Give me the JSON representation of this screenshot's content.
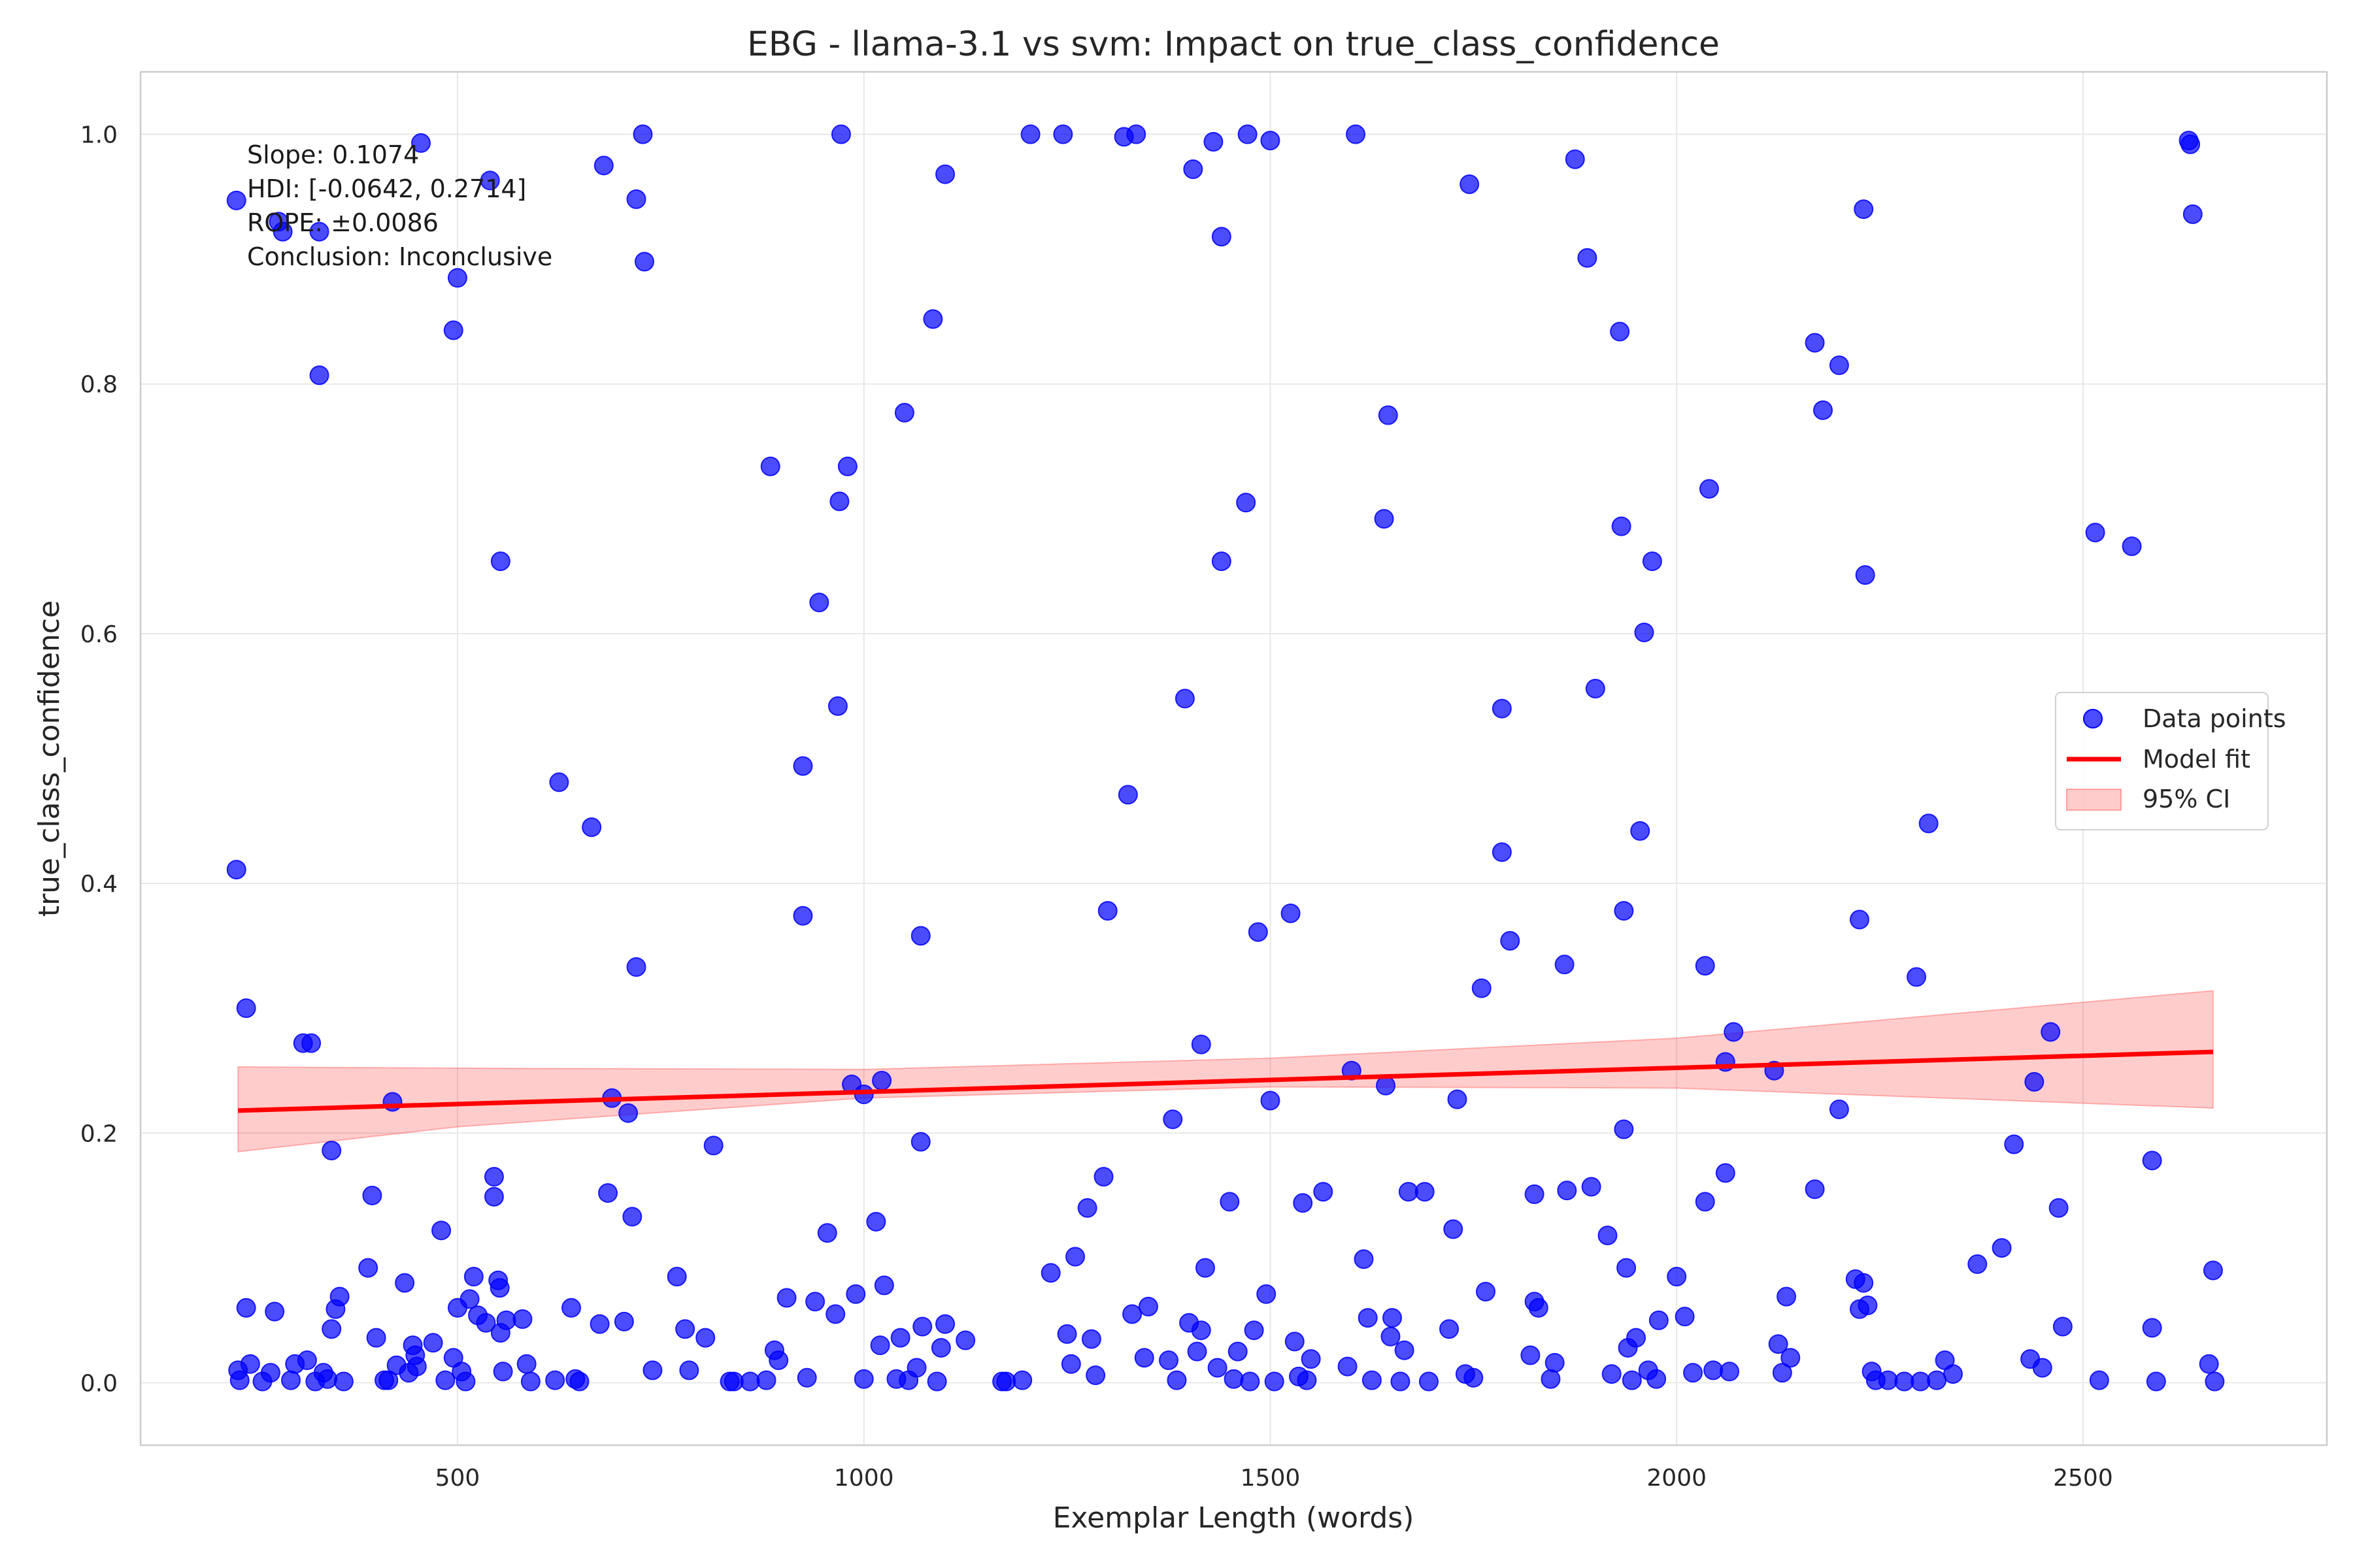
{
  "chart_data": {
    "type": "scatter",
    "title": "EBG - llama-3.1 vs svm: Impact on true_class_confidence",
    "xlabel": "Exemplar Length (words)",
    "ylabel": "true_class_confidence",
    "xlim": [
      110,
      2800
    ],
    "ylim": [
      -0.05,
      1.05
    ],
    "xticks": [
      500,
      1000,
      1500,
      2000,
      2500
    ],
    "yticks": [
      0.0,
      0.2,
      0.4,
      0.6,
      0.8,
      1.0
    ],
    "xtick_labels": [
      "500",
      "1000",
      "1500",
      "2000",
      "2500"
    ],
    "ytick_labels": [
      "0.0",
      "0.2",
      "0.4",
      "0.6",
      "0.8",
      "1.0"
    ],
    "grid": true,
    "legend_position": "center-right",
    "legend": [
      "Data points",
      "Model fit",
      "95% CI"
    ],
    "colors": {
      "points": "#0000ff",
      "fit": "#ff0000",
      "ci": "#ffb3b3"
    },
    "annotation": [
      "Slope: 0.1074",
      "HDI: [-0.0642, 0.2714]",
      "ROPE: ±0.0086",
      "Conclusion: Inconclusive"
    ],
    "model_fit": {
      "x": [
        230,
        2660
      ],
      "y": [
        0.218,
        0.265
      ]
    },
    "ci_band": {
      "x": [
        230,
        500,
        1000,
        1500,
        2000,
        2660
      ],
      "lower": [
        0.185,
        0.205,
        0.228,
        0.237,
        0.236,
        0.22
      ],
      "upper": [
        0.253,
        0.252,
        0.251,
        0.26,
        0.276,
        0.314
      ]
    },
    "points": [
      [
        228,
        0.947
      ],
      [
        228,
        0.411
      ],
      [
        240,
        0.3
      ],
      [
        230,
        0.01
      ],
      [
        232,
        0.002
      ],
      [
        245,
        0.015
      ],
      [
        240,
        0.06
      ],
      [
        260,
        0.001
      ],
      [
        270,
        0.008
      ],
      [
        275,
        0.057
      ],
      [
        280,
        0.93
      ],
      [
        285,
        0.922
      ],
      [
        295,
        0.002
      ],
      [
        300,
        0.015
      ],
      [
        310,
        0.272
      ],
      [
        315,
        0.018
      ],
      [
        320,
        0.272
      ],
      [
        325,
        0.001
      ],
      [
        330,
        0.807
      ],
      [
        330,
        0.922
      ],
      [
        335,
        0.008
      ],
      [
        340,
        0.003
      ],
      [
        345,
        0.043
      ],
      [
        345,
        0.186
      ],
      [
        350,
        0.059
      ],
      [
        355,
        0.069
      ],
      [
        360,
        0.001
      ],
      [
        390,
        0.092
      ],
      [
        395,
        0.15
      ],
      [
        400,
        0.036
      ],
      [
        410,
        0.002
      ],
      [
        415,
        0.002
      ],
      [
        420,
        0.225
      ],
      [
        425,
        0.014
      ],
      [
        435,
        0.08
      ],
      [
        440,
        0.008
      ],
      [
        445,
        0.03
      ],
      [
        448,
        0.022
      ],
      [
        450,
        0.013
      ],
      [
        455,
        0.993
      ],
      [
        470,
        0.032
      ],
      [
        480,
        0.122
      ],
      [
        485,
        0.002
      ],
      [
        495,
        0.843
      ],
      [
        495,
        0.02
      ],
      [
        500,
        0.885
      ],
      [
        500,
        0.06
      ],
      [
        505,
        0.009
      ],
      [
        510,
        0.001
      ],
      [
        515,
        0.067
      ],
      [
        520,
        0.085
      ],
      [
        525,
        0.054
      ],
      [
        535,
        0.048
      ],
      [
        540,
        0.963
      ],
      [
        545,
        0.165
      ],
      [
        545,
        0.149
      ],
      [
        550,
        0.082
      ],
      [
        552,
        0.076
      ],
      [
        553,
        0.04
      ],
      [
        553,
        0.658
      ],
      [
        556,
        0.009
      ],
      [
        560,
        0.05
      ],
      [
        580,
        0.051
      ],
      [
        585,
        0.015
      ],
      [
        590,
        0.001
      ],
      [
        620,
        0.002
      ],
      [
        625,
        0.481
      ],
      [
        640,
        0.06
      ],
      [
        645,
        0.003
      ],
      [
        650,
        0.001
      ],
      [
        665,
        0.445
      ],
      [
        675,
        0.047
      ],
      [
        680,
        0.975
      ],
      [
        685,
        0.152
      ],
      [
        690,
        0.228
      ],
      [
        705,
        0.049
      ],
      [
        710,
        0.216
      ],
      [
        715,
        0.133
      ],
      [
        720,
        0.333
      ],
      [
        720,
        0.948
      ],
      [
        728,
        1.0
      ],
      [
        730,
        0.898
      ],
      [
        740,
        0.01
      ],
      [
        770,
        0.085
      ],
      [
        780,
        0.043
      ],
      [
        785,
        0.01
      ],
      [
        805,
        0.036
      ],
      [
        815,
        0.19
      ],
      [
        835,
        0.001
      ],
      [
        840,
        0.001
      ],
      [
        860,
        0.001
      ],
      [
        880,
        0.002
      ],
      [
        885,
        0.734
      ],
      [
        890,
        0.026
      ],
      [
        895,
        0.018
      ],
      [
        905,
        0.068
      ],
      [
        925,
        0.494
      ],
      [
        925,
        0.374
      ],
      [
        930,
        0.004
      ],
      [
        940,
        0.065
      ],
      [
        945,
        0.625
      ],
      [
        955,
        0.12
      ],
      [
        965,
        0.055
      ],
      [
        968,
        0.542
      ],
      [
        970,
        0.706
      ],
      [
        972,
        1.0
      ],
      [
        980,
        0.734
      ],
      [
        985,
        0.239
      ],
      [
        990,
        0.071
      ],
      [
        1000,
        0.231
      ],
      [
        1000,
        0.003
      ],
      [
        1015,
        0.129
      ],
      [
        1020,
        0.03
      ],
      [
        1022,
        0.242
      ],
      [
        1025,
        0.078
      ],
      [
        1040,
        0.003
      ],
      [
        1045,
        0.036
      ],
      [
        1050,
        0.777
      ],
      [
        1055,
        0.002
      ],
      [
        1065,
        0.012
      ],
      [
        1070,
        0.358
      ],
      [
        1070,
        0.193
      ],
      [
        1072,
        0.045
      ],
      [
        1085,
        0.852
      ],
      [
        1090,
        0.001
      ],
      [
        1095,
        0.028
      ],
      [
        1100,
        0.968
      ],
      [
        1100,
        0.047
      ],
      [
        1125,
        0.034
      ],
      [
        1170,
        0.001
      ],
      [
        1175,
        0.001
      ],
      [
        1195,
        0.002
      ],
      [
        1205,
        1.0
      ],
      [
        1230,
        0.088
      ],
      [
        1245,
        1.0
      ],
      [
        1250,
        0.039
      ],
      [
        1255,
        0.015
      ],
      [
        1260,
        0.101
      ],
      [
        1275,
        0.14
      ],
      [
        1280,
        0.035
      ],
      [
        1285,
        0.006
      ],
      [
        1295,
        0.165
      ],
      [
        1300,
        0.378
      ],
      [
        1320,
        0.998
      ],
      [
        1325,
        0.471
      ],
      [
        1330,
        0.055
      ],
      [
        1335,
        1.0
      ],
      [
        1345,
        0.02
      ],
      [
        1350,
        0.061
      ],
      [
        1375,
        0.018
      ],
      [
        1380,
        0.211
      ],
      [
        1385,
        0.002
      ],
      [
        1395,
        0.548
      ],
      [
        1400,
        0.048
      ],
      [
        1405,
        0.972
      ],
      [
        1410,
        0.025
      ],
      [
        1415,
        0.271
      ],
      [
        1415,
        0.042
      ],
      [
        1420,
        0.092
      ],
      [
        1430,
        0.994
      ],
      [
        1435,
        0.012
      ],
      [
        1440,
        0.918
      ],
      [
        1440,
        0.658
      ],
      [
        1450,
        0.145
      ],
      [
        1455,
        0.003
      ],
      [
        1460,
        0.025
      ],
      [
        1470,
        0.705
      ],
      [
        1472,
        1.0
      ],
      [
        1475,
        0.001
      ],
      [
        1480,
        0.042
      ],
      [
        1485,
        0.361
      ],
      [
        1495,
        0.071
      ],
      [
        1500,
        0.226
      ],
      [
        1500,
        0.995
      ],
      [
        1505,
        0.001
      ],
      [
        1525,
        0.376
      ],
      [
        1530,
        0.033
      ],
      [
        1535,
        0.005
      ],
      [
        1540,
        0.144
      ],
      [
        1545,
        0.002
      ],
      [
        1550,
        0.019
      ],
      [
        1565,
        0.153
      ],
      [
        1595,
        0.013
      ],
      [
        1600,
        0.25
      ],
      [
        1605,
        1.0
      ],
      [
        1615,
        0.099
      ],
      [
        1620,
        0.052
      ],
      [
        1625,
        0.002
      ],
      [
        1640,
        0.692
      ],
      [
        1642,
        0.238
      ],
      [
        1645,
        0.775
      ],
      [
        1648,
        0.037
      ],
      [
        1650,
        0.052
      ],
      [
        1660,
        0.001
      ],
      [
        1665,
        0.026
      ],
      [
        1670,
        0.153
      ],
      [
        1690,
        0.153
      ],
      [
        1695,
        0.001
      ],
      [
        1720,
        0.043
      ],
      [
        1725,
        0.123
      ],
      [
        1730,
        0.227
      ],
      [
        1740,
        0.007
      ],
      [
        1745,
        0.96
      ],
      [
        1750,
        0.004
      ],
      [
        1760,
        0.316
      ],
      [
        1765,
        0.073
      ],
      [
        1785,
        0.54
      ],
      [
        1785,
        0.425
      ],
      [
        1795,
        0.354
      ],
      [
        1820,
        0.022
      ],
      [
        1825,
        0.151
      ],
      [
        1825,
        0.065
      ],
      [
        1830,
        0.06
      ],
      [
        1845,
        0.003
      ],
      [
        1850,
        0.016
      ],
      [
        1862,
        0.335
      ],
      [
        1865,
        0.154
      ],
      [
        1875,
        0.98
      ],
      [
        1890,
        0.901
      ],
      [
        1895,
        0.157
      ],
      [
        1900,
        0.556
      ],
      [
        1915,
        0.118
      ],
      [
        1920,
        0.007
      ],
      [
        1930,
        0.842
      ],
      [
        1932,
        0.686
      ],
      [
        1935,
        0.378
      ],
      [
        1935,
        0.203
      ],
      [
        1938,
        0.092
      ],
      [
        1940,
        0.028
      ],
      [
        1945,
        0.002
      ],
      [
        1950,
        0.036
      ],
      [
        1955,
        0.442
      ],
      [
        1960,
        0.601
      ],
      [
        1965,
        0.01
      ],
      [
        1970,
        0.658
      ],
      [
        1975,
        0.003
      ],
      [
        1978,
        0.05
      ],
      [
        2000,
        0.085
      ],
      [
        2010,
        0.053
      ],
      [
        2020,
        0.008
      ],
      [
        2035,
        0.334
      ],
      [
        2035,
        0.145
      ],
      [
        2040,
        0.716
      ],
      [
        2045,
        0.01
      ],
      [
        2060,
        0.257
      ],
      [
        2060,
        0.168
      ],
      [
        2065,
        0.009
      ],
      [
        2070,
        0.281
      ],
      [
        2120,
        0.25
      ],
      [
        2125,
        0.031
      ],
      [
        2130,
        0.008
      ],
      [
        2135,
        0.069
      ],
      [
        2140,
        0.02
      ],
      [
        2170,
        0.833
      ],
      [
        2170,
        0.155
      ],
      [
        2180,
        0.779
      ],
      [
        2200,
        0.815
      ],
      [
        2200,
        0.219
      ],
      [
        2220,
        0.083
      ],
      [
        2225,
        0.059
      ],
      [
        2225,
        0.371
      ],
      [
        2230,
        0.08
      ],
      [
        2230,
        0.94
      ],
      [
        2232,
        0.647
      ],
      [
        2235,
        0.062
      ],
      [
        2240,
        0.009
      ],
      [
        2245,
        0.002
      ],
      [
        2260,
        0.002
      ],
      [
        2280,
        0.001
      ],
      [
        2295,
        0.325
      ],
      [
        2300,
        0.001
      ],
      [
        2310,
        0.448
      ],
      [
        2320,
        0.002
      ],
      [
        2330,
        0.018
      ],
      [
        2340,
        0.007
      ],
      [
        2370,
        0.095
      ],
      [
        2400,
        0.108
      ],
      [
        2415,
        0.191
      ],
      [
        2435,
        0.019
      ],
      [
        2440,
        0.241
      ],
      [
        2450,
        0.012
      ],
      [
        2460,
        0.281
      ],
      [
        2470,
        0.14
      ],
      [
        2475,
        0.045
      ],
      [
        2515,
        0.681
      ],
      [
        2520,
        0.002
      ],
      [
        2560,
        0.67
      ],
      [
        2585,
        0.178
      ],
      [
        2585,
        0.044
      ],
      [
        2590,
        0.001
      ],
      [
        2630,
        0.995
      ],
      [
        2632,
        0.992
      ],
      [
        2635,
        0.936
      ],
      [
        2655,
        0.015
      ],
      [
        2660,
        0.09
      ],
      [
        2662,
        0.001
      ]
    ]
  }
}
